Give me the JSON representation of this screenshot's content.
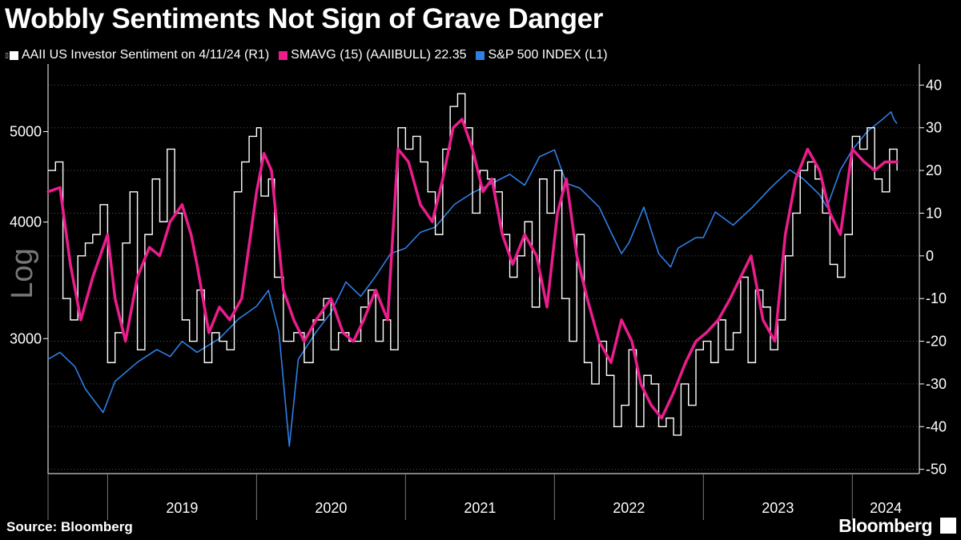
{
  "title": "Wobbly Sentiments Not Sign of Grave Danger",
  "source": "Source: Bloomberg",
  "brand": "Bloomberg",
  "colors": {
    "sentiment": "#ffffff",
    "smavg": "#ec1c8c",
    "spx": "#2f7fe6",
    "background": "#000000",
    "axis": "#ffffff"
  },
  "legend": [
    {
      "label": "AAII US Investor Sentiment on 4/11/24 (R1)",
      "color": "#ffffff"
    },
    {
      "label": "SMAVG (15) (AAIIBULL) 22.35",
      "color": "#ec1c8c"
    },
    {
      "label": "S&P 500 INDEX (L1)",
      "color": "#2f7fe6"
    }
  ],
  "chart_data": {
    "type": "line",
    "title": "Wobbly Sentiments Not Sign of Grave Danger",
    "left_axis": {
      "label": "Log",
      "scale": "log",
      "ticks": [
        3000,
        4000,
        5000
      ],
      "range": [
        2150,
        5850
      ]
    },
    "right_axis": {
      "ticks": [
        40,
        30,
        20,
        10,
        0,
        -10,
        -20,
        -30,
        -40,
        -50
      ],
      "range": [
        -51,
        44
      ]
    },
    "x_range": [
      2018.6,
      2024.45
    ],
    "x_tick_labels": [
      "2019",
      "2020",
      "2021",
      "2022",
      "2023",
      "2024"
    ],
    "year_boundaries": [
      2019.0,
      2020.0,
      2021.0,
      2022.0,
      2023.0,
      2024.0
    ],
    "series": [
      {
        "name": "S&P 500 INDEX (L1)",
        "axis": "left",
        "points": [
          [
            2018.6,
            2850
          ],
          [
            2018.68,
            2900
          ],
          [
            2018.78,
            2800
          ],
          [
            2018.85,
            2650
          ],
          [
            2018.97,
            2500
          ],
          [
            2019.05,
            2700
          ],
          [
            2019.2,
            2830
          ],
          [
            2019.33,
            2920
          ],
          [
            2019.42,
            2870
          ],
          [
            2019.5,
            2980
          ],
          [
            2019.6,
            2900
          ],
          [
            2019.75,
            3000
          ],
          [
            2019.88,
            3150
          ],
          [
            2020.0,
            3250
          ],
          [
            2020.08,
            3380
          ],
          [
            2020.15,
            3050
          ],
          [
            2020.22,
            2300
          ],
          [
            2020.28,
            2850
          ],
          [
            2020.4,
            3050
          ],
          [
            2020.5,
            3200
          ],
          [
            2020.6,
            3450
          ],
          [
            2020.7,
            3330
          ],
          [
            2020.8,
            3500
          ],
          [
            2020.9,
            3700
          ],
          [
            2021.0,
            3750
          ],
          [
            2021.1,
            3900
          ],
          [
            2021.2,
            3950
          ],
          [
            2021.33,
            4180
          ],
          [
            2021.45,
            4300
          ],
          [
            2021.58,
            4400
          ],
          [
            2021.7,
            4500
          ],
          [
            2021.8,
            4380
          ],
          [
            2021.9,
            4700
          ],
          [
            2022.0,
            4780
          ],
          [
            2022.08,
            4400
          ],
          [
            2022.17,
            4350
          ],
          [
            2022.3,
            4150
          ],
          [
            2022.38,
            3900
          ],
          [
            2022.45,
            3700
          ],
          [
            2022.5,
            3800
          ],
          [
            2022.6,
            4150
          ],
          [
            2022.7,
            3700
          ],
          [
            2022.78,
            3580
          ],
          [
            2022.83,
            3750
          ],
          [
            2022.95,
            3850
          ],
          [
            2023.0,
            3850
          ],
          [
            2023.08,
            4100
          ],
          [
            2023.2,
            3970
          ],
          [
            2023.33,
            4150
          ],
          [
            2023.45,
            4350
          ],
          [
            2023.58,
            4550
          ],
          [
            2023.67,
            4450
          ],
          [
            2023.78,
            4280
          ],
          [
            2023.83,
            4150
          ],
          [
            2023.92,
            4550
          ],
          [
            2024.0,
            4780
          ],
          [
            2024.1,
            5000
          ],
          [
            2024.2,
            5150
          ],
          [
            2024.26,
            5250
          ],
          [
            2024.28,
            5150
          ],
          [
            2024.3,
            5100
          ]
        ]
      },
      {
        "name": "AAII US Investor Sentiment on 4/11/24 (R1)",
        "axis": "right",
        "points": [
          [
            2018.6,
            20
          ],
          [
            2018.65,
            22
          ],
          [
            2018.7,
            -10
          ],
          [
            2018.75,
            -15
          ],
          [
            2018.8,
            0
          ],
          [
            2018.85,
            3
          ],
          [
            2018.9,
            5
          ],
          [
            2018.95,
            12
          ],
          [
            2019.0,
            -25
          ],
          [
            2019.05,
            -18
          ],
          [
            2019.1,
            3
          ],
          [
            2019.15,
            15
          ],
          [
            2019.2,
            -22
          ],
          [
            2019.25,
            5
          ],
          [
            2019.3,
            18
          ],
          [
            2019.35,
            8
          ],
          [
            2019.4,
            25
          ],
          [
            2019.45,
            10
          ],
          [
            2019.5,
            -15
          ],
          [
            2019.55,
            -20
          ],
          [
            2019.6,
            -8
          ],
          [
            2019.65,
            -25
          ],
          [
            2019.7,
            -18
          ],
          [
            2019.75,
            -20
          ],
          [
            2019.8,
            -22
          ],
          [
            2019.85,
            15
          ],
          [
            2019.9,
            22
          ],
          [
            2019.95,
            28
          ],
          [
            2020.0,
            30
          ],
          [
            2020.03,
            14
          ],
          [
            2020.08,
            18
          ],
          [
            2020.12,
            -5
          ],
          [
            2020.18,
            -20
          ],
          [
            2020.25,
            -18
          ],
          [
            2020.32,
            -25
          ],
          [
            2020.38,
            -15
          ],
          [
            2020.45,
            -10
          ],
          [
            2020.5,
            -22
          ],
          [
            2020.55,
            -18
          ],
          [
            2020.62,
            -20
          ],
          [
            2020.7,
            -12
          ],
          [
            2020.75,
            -8
          ],
          [
            2020.8,
            -20
          ],
          [
            2020.85,
            -15
          ],
          [
            2020.9,
            -22
          ],
          [
            2020.95,
            30
          ],
          [
            2021.0,
            25
          ],
          [
            2021.05,
            28
          ],
          [
            2021.1,
            22
          ],
          [
            2021.15,
            15
          ],
          [
            2021.2,
            5
          ],
          [
            2021.25,
            25
          ],
          [
            2021.3,
            35
          ],
          [
            2021.35,
            38
          ],
          [
            2021.4,
            30
          ],
          [
            2021.45,
            10
          ],
          [
            2021.5,
            20
          ],
          [
            2021.55,
            18
          ],
          [
            2021.6,
            15
          ],
          [
            2021.65,
            5
          ],
          [
            2021.7,
            -5
          ],
          [
            2021.75,
            0
          ],
          [
            2021.8,
            8
          ],
          [
            2021.85,
            -12
          ],
          [
            2021.9,
            18
          ],
          [
            2021.95,
            10
          ],
          [
            2022.0,
            20
          ],
          [
            2022.05,
            -10
          ],
          [
            2022.1,
            -20
          ],
          [
            2022.15,
            5
          ],
          [
            2022.2,
            -25
          ],
          [
            2022.25,
            -30
          ],
          [
            2022.3,
            -20
          ],
          [
            2022.35,
            -28
          ],
          [
            2022.4,
            -40
          ],
          [
            2022.45,
            -35
          ],
          [
            2022.5,
            -22
          ],
          [
            2022.55,
            -40
          ],
          [
            2022.6,
            -28
          ],
          [
            2022.65,
            -30
          ],
          [
            2022.7,
            -40
          ],
          [
            2022.75,
            -38
          ],
          [
            2022.8,
            -42
          ],
          [
            2022.85,
            -30
          ],
          [
            2022.9,
            -35
          ],
          [
            2022.95,
            -22
          ],
          [
            2023.0,
            -20
          ],
          [
            2023.05,
            -25
          ],
          [
            2023.1,
            -15
          ],
          [
            2023.15,
            -22
          ],
          [
            2023.2,
            -18
          ],
          [
            2023.25,
            -5
          ],
          [
            2023.3,
            -25
          ],
          [
            2023.35,
            -8
          ],
          [
            2023.4,
            -12
          ],
          [
            2023.45,
            -22
          ],
          [
            2023.5,
            -15
          ],
          [
            2023.55,
            0
          ],
          [
            2023.6,
            10
          ],
          [
            2023.65,
            20
          ],
          [
            2023.7,
            22
          ],
          [
            2023.75,
            18
          ],
          [
            2023.8,
            10
          ],
          [
            2023.85,
            -2
          ],
          [
            2023.9,
            -5
          ],
          [
            2023.95,
            5
          ],
          [
            2024.0,
            28
          ],
          [
            2024.05,
            25
          ],
          [
            2024.1,
            30
          ],
          [
            2024.15,
            18
          ],
          [
            2024.2,
            15
          ],
          [
            2024.25,
            25
          ],
          [
            2024.3,
            20
          ]
        ]
      },
      {
        "name": "SMAVG (15) (AAIIBULL) 22.35",
        "axis": "right",
        "points": [
          [
            2018.6,
            15
          ],
          [
            2018.68,
            16
          ],
          [
            2018.75,
            -2
          ],
          [
            2018.82,
            -15
          ],
          [
            2018.9,
            -5
          ],
          [
            2019.0,
            5
          ],
          [
            2019.05,
            -10
          ],
          [
            2019.12,
            -20
          ],
          [
            2019.2,
            -5
          ],
          [
            2019.28,
            2
          ],
          [
            2019.35,
            0
          ],
          [
            2019.42,
            8
          ],
          [
            2019.5,
            12
          ],
          [
            2019.56,
            5
          ],
          [
            2019.6,
            -2
          ],
          [
            2019.68,
            -18
          ],
          [
            2019.75,
            -12
          ],
          [
            2019.82,
            -15
          ],
          [
            2019.9,
            -10
          ],
          [
            2020.0,
            15
          ],
          [
            2020.05,
            24
          ],
          [
            2020.1,
            20
          ],
          [
            2020.18,
            -8
          ],
          [
            2020.25,
            -15
          ],
          [
            2020.32,
            -20
          ],
          [
            2020.4,
            -15
          ],
          [
            2020.5,
            -10
          ],
          [
            2020.58,
            -18
          ],
          [
            2020.65,
            -20
          ],
          [
            2020.72,
            -15
          ],
          [
            2020.8,
            -8
          ],
          [
            2020.88,
            -15
          ],
          [
            2020.95,
            25
          ],
          [
            2021.02,
            22
          ],
          [
            2021.1,
            12
          ],
          [
            2021.18,
            8
          ],
          [
            2021.25,
            18
          ],
          [
            2021.32,
            30
          ],
          [
            2021.38,
            32
          ],
          [
            2021.45,
            25
          ],
          [
            2021.52,
            15
          ],
          [
            2021.58,
            18
          ],
          [
            2021.65,
            5
          ],
          [
            2021.72,
            -2
          ],
          [
            2021.8,
            5
          ],
          [
            2021.88,
            0
          ],
          [
            2021.95,
            -12
          ],
          [
            2022.02,
            10
          ],
          [
            2022.08,
            18
          ],
          [
            2022.15,
            0
          ],
          [
            2022.22,
            -10
          ],
          [
            2022.3,
            -20
          ],
          [
            2022.38,
            -25
          ],
          [
            2022.45,
            -15
          ],
          [
            2022.52,
            -20
          ],
          [
            2022.58,
            -30
          ],
          [
            2022.65,
            -35
          ],
          [
            2022.72,
            -38
          ],
          [
            2022.8,
            -32
          ],
          [
            2022.88,
            -25
          ],
          [
            2022.95,
            -20
          ],
          [
            2023.02,
            -18
          ],
          [
            2023.1,
            -15
          ],
          [
            2023.18,
            -10
          ],
          [
            2023.25,
            -5
          ],
          [
            2023.32,
            0
          ],
          [
            2023.4,
            -15
          ],
          [
            2023.48,
            -20
          ],
          [
            2023.55,
            5
          ],
          [
            2023.62,
            18
          ],
          [
            2023.7,
            25
          ],
          [
            2023.78,
            20
          ],
          [
            2023.85,
            10
          ],
          [
            2023.92,
            5
          ],
          [
            2024.0,
            25
          ],
          [
            2024.08,
            22
          ],
          [
            2024.15,
            20
          ],
          [
            2024.22,
            22
          ],
          [
            2024.3,
            22
          ]
        ]
      }
    ]
  }
}
